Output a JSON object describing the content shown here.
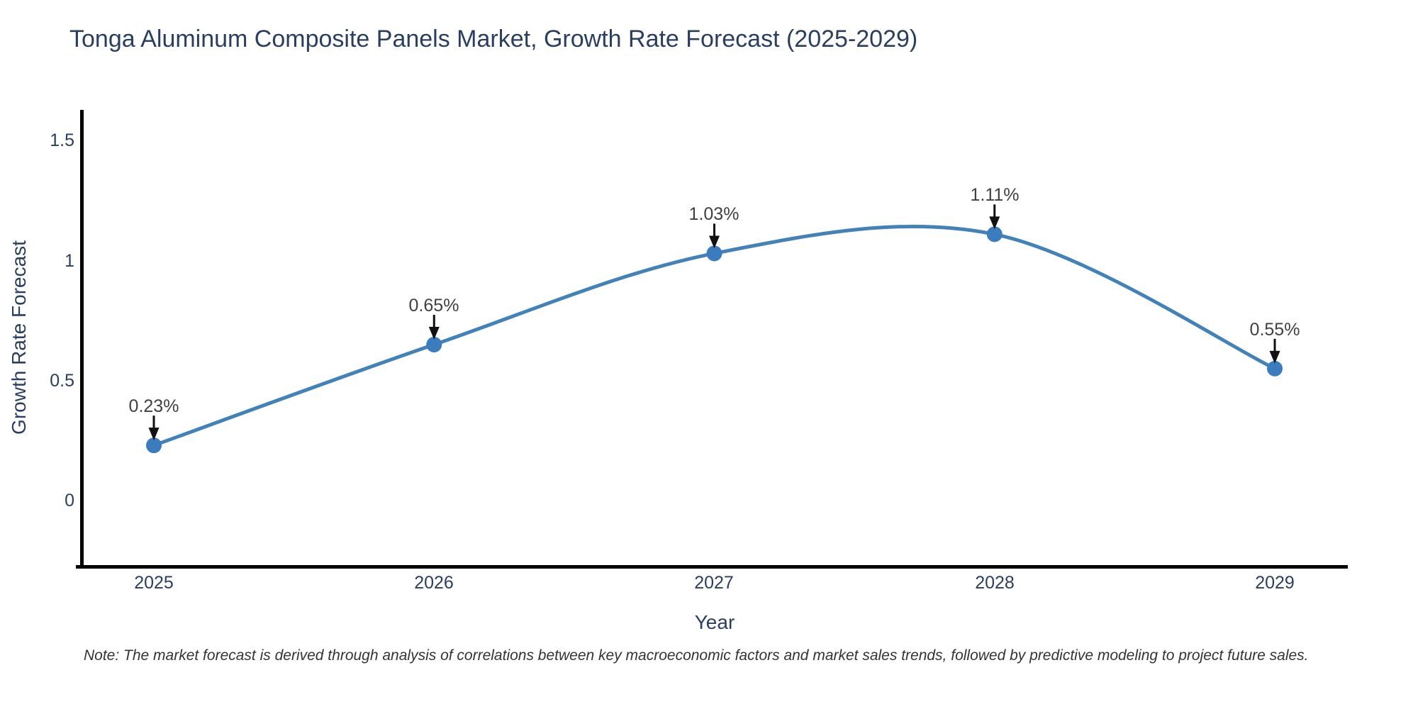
{
  "title": "Tonga Aluminum Composite Panels Market, Growth Rate Forecast (2025-2029)",
  "note": "Note: The market forecast is derived through analysis of correlations between key macroeconomic factors and market sales trends, followed by predictive modeling to project future sales.",
  "chart_data": {
    "type": "line",
    "title": "Tonga Aluminum Composite Panels Market, Growth Rate Forecast (2025-2029)",
    "xlabel": "Year",
    "ylabel": "Growth Rate Forecast",
    "x": [
      2025,
      2026,
      2027,
      2028,
      2029
    ],
    "categories": [
      "2025",
      "2026",
      "2027",
      "2028",
      "2029"
    ],
    "series": [
      {
        "name": "Growth Rate Forecast",
        "values": [
          0.23,
          0.65,
          1.03,
          1.11,
          0.55
        ]
      }
    ],
    "point_labels": [
      "0.23%",
      "0.65%",
      "1.03%",
      "1.11%",
      "0.55%"
    ],
    "y_ticks": [
      {
        "label": "0",
        "value": 0
      },
      {
        "label": "0.5",
        "value": 0.5
      },
      {
        "label": "1",
        "value": 1
      },
      {
        "label": "1.5",
        "value": 1.5
      }
    ],
    "ylim": [
      -0.28,
      1.62
    ],
    "grid": false,
    "legend_position": "none",
    "line_shape": "spline",
    "marker": "circle",
    "annotation_arrows": true,
    "colors": {
      "line": "#4282b8",
      "marker": "#3a7cbd",
      "axis": "#000000",
      "text": "#2a3f5f",
      "annotation": "#404040",
      "note": "#333333",
      "background": "#ffffff"
    }
  }
}
